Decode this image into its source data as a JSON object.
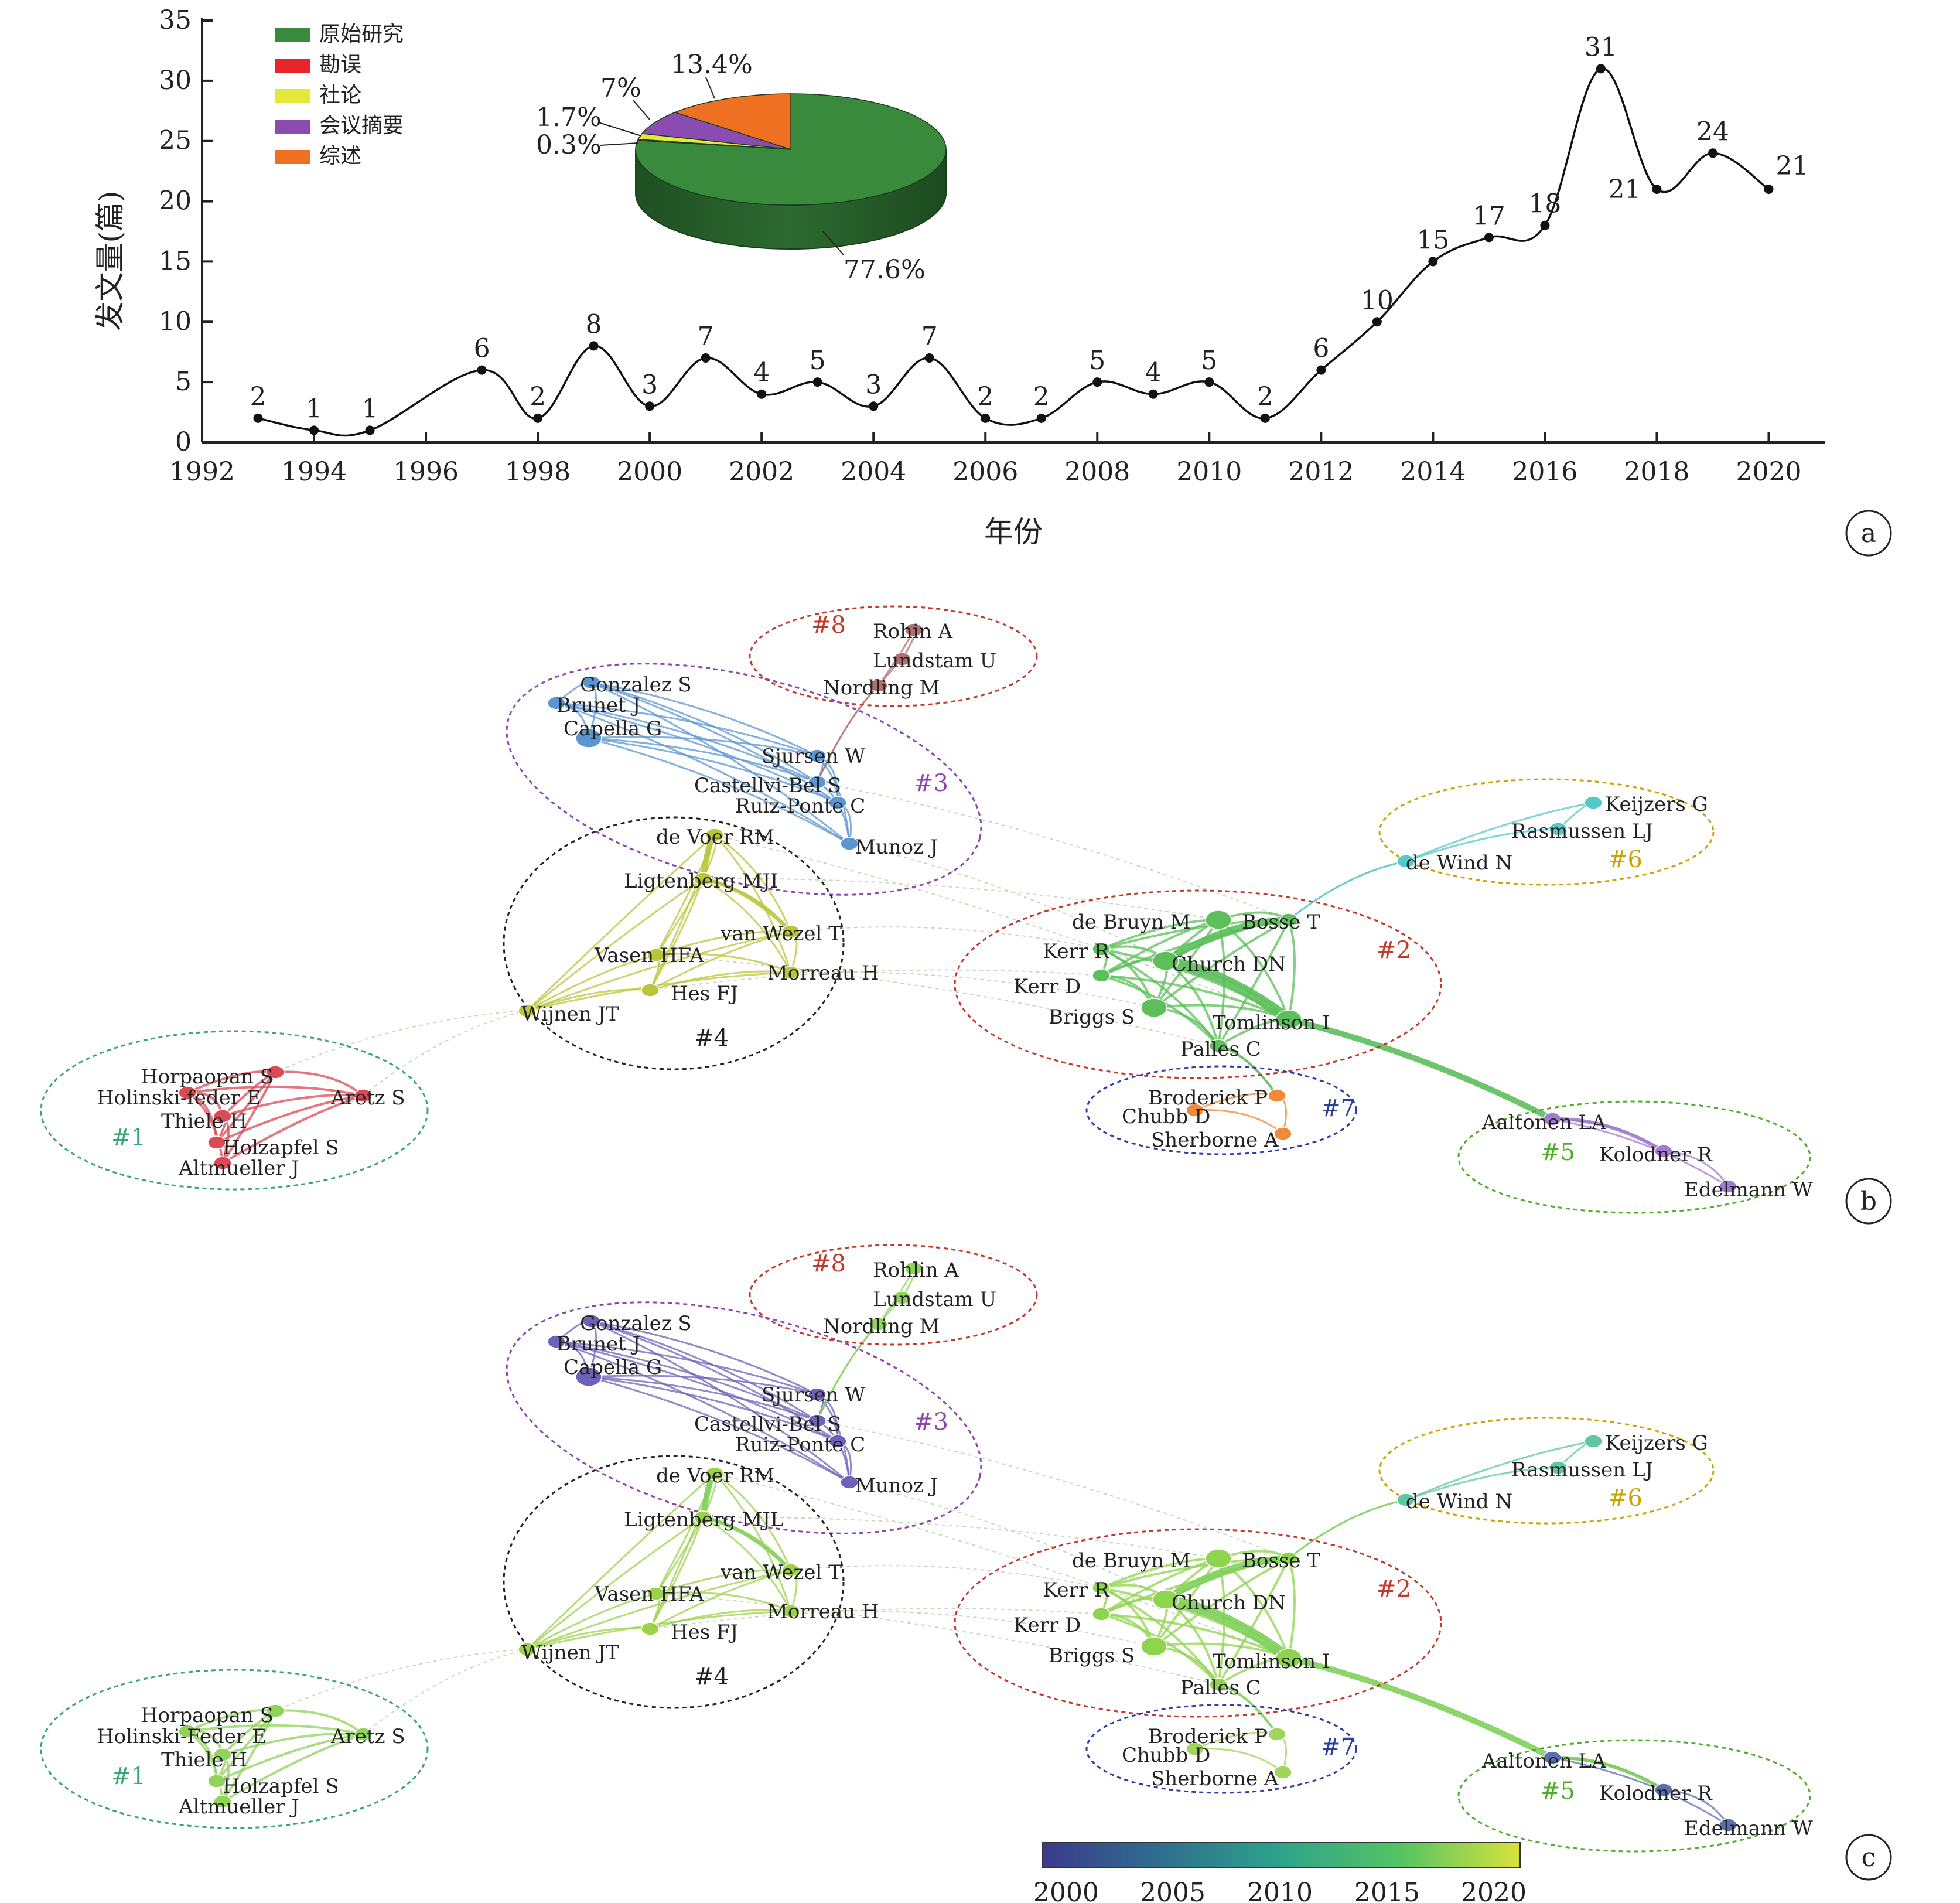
{
  "chart_data": [
    {
      "type": "line",
      "ylabel": "发文量(篇)",
      "xlabel": "年份",
      "x_ticks": [
        "1992",
        "1994",
        "1996",
        "1998",
        "2000",
        "2002",
        "2004",
        "2006",
        "2008",
        "2010",
        "2012",
        "2014",
        "2016",
        "2018",
        "2020"
      ],
      "y_ticks": [
        "0",
        "5",
        "10",
        "15",
        "20",
        "25",
        "30",
        "35"
      ],
      "xlim": [
        1992,
        2021
      ],
      "ylim": [
        0,
        35
      ],
      "x": [
        1993,
        1994,
        1995,
        1997,
        1998,
        1999,
        2000,
        2001,
        2002,
        2003,
        2004,
        2005,
        2006,
        2007,
        2008,
        2009,
        2010,
        2011,
        2012,
        2013,
        2014,
        2015,
        2016,
        2017,
        2018,
        2019,
        2020
      ],
      "values": [
        2,
        1,
        1,
        6,
        2,
        8,
        3,
        7,
        4,
        5,
        3,
        7,
        2,
        2,
        5,
        4,
        5,
        2,
        6,
        10,
        15,
        17,
        18,
        31,
        21,
        24,
        21
      ],
      "line_color": "#111111",
      "panel_label": "a"
    },
    {
      "type": "pie",
      "categories": [
        "原始研究",
        "勘误",
        "社论",
        "会议摘要",
        "综述"
      ],
      "values": [
        77.6,
        0.3,
        1.7,
        7,
        13.4
      ],
      "value_labels": [
        "77.6%",
        "0.3%",
        "1.7%",
        "7%",
        "13.4%"
      ],
      "colors": [
        "#3a8a3e",
        "#e8262a",
        "#e4e83a",
        "#8a4cb0",
        "#f07022"
      ],
      "legend_position": "top-left"
    }
  ],
  "network_b": {
    "panel_label": "b",
    "clusters": [
      {
        "id": "#1",
        "color": "#3aa37a",
        "label_color": "#3aa37a"
      },
      {
        "id": "#2",
        "color": "#c0392b",
        "label_color": "#c0392b"
      },
      {
        "id": "#3",
        "color": "#8e44ad",
        "label_color": "#8e44ad"
      },
      {
        "id": "#4",
        "color": "#222222",
        "label_color": "#222222"
      },
      {
        "id": "#5",
        "color": "#4caf2a",
        "label_color": "#4caf2a"
      },
      {
        "id": "#6",
        "color": "#c9a400",
        "label_color": "#c9a400"
      },
      {
        "id": "#7",
        "color": "#2a3f9e",
        "label_color": "#2a3f9e"
      },
      {
        "id": "#8",
        "color": "#c0392b",
        "label_color": "#c0392b"
      }
    ],
    "node_labels": {
      "rohin": "Rohin A",
      "lundstam": "Lundstam U",
      "nordling": "Nordling M",
      "gonzalez": "Gonzalez S",
      "brunet": "Brunet J",
      "capella": "Capella G",
      "sjursen": "Sjursen W",
      "castellvi": "Castellvi-Bel S",
      "ruizponte": "Ruiz-Ponte C",
      "munoz": "Munoz J",
      "devoer": "de Voer RM",
      "ligtenberg": "Ligtenberg MJI",
      "vanwezel": "van Wezel T",
      "vasen": "Vasen HFA",
      "morreau": "Morreau H",
      "hes": "Hes FJ",
      "wijnen": "Wijnen JT",
      "keijzers": "Keijzers G",
      "rasmussen": "Rasmussen LJ",
      "dewind": "de Wind N",
      "debruyn": "de Bruyn M",
      "bosse": "Bosse T",
      "kerrr": "Kerr R",
      "church": "Church DN",
      "kerrd": "Kerr D",
      "briggs": "Briggs S",
      "tomlinson": "Tomlinson I",
      "palles": "Palles C",
      "broderick": "Broderick P",
      "chubb": "Chubb D",
      "sherborne": "Sherborne A",
      "aaltonen": "Aaltonen LA",
      "kolodner": "Kolodner R",
      "edelmann": "Edelmann W",
      "horpaopan": "Horpaopan S",
      "holinski": "Holinski-feder E",
      "thiele": "Thiele H",
      "aretz": "Aretz S",
      "holzapfel": "Holzapfel S",
      "altmueller": "Altmueller J"
    }
  },
  "network_c": {
    "panel_label": "c",
    "node_labels": {
      "rohin": "Rohlin A",
      "lundstam": "Lundstam U",
      "nordling": "Nordling M",
      "gonzalez": "Gonzalez S",
      "brunet": "Brunet J",
      "capella": "Capella G",
      "sjursen": "Sjursen W",
      "castellvi": "Castellvi-Bel S",
      "ruizponte": "Ruiz-Ponte C",
      "munoz": "Munoz J",
      "devoer": "de Voer RM",
      "ligtenberg": "Ligtenberg MJL",
      "vanwezel": "van Wezel T",
      "vasen": "Vasen HFA",
      "morreau": "Morreau H",
      "hes": "Hes FJ",
      "wijnen": "Wijnen JT",
      "keijzers": "Keijzers G",
      "rasmussen": "Rasmussen LJ",
      "dewind": "de Wind N",
      "debruyn": "de Bruyn M",
      "bosse": "Bosse T",
      "kerrr": "Kerr R",
      "church": "Church DN",
      "kerrd": "Kerr D",
      "briggs": "Briggs S",
      "tomlinson": "Tomlinson I",
      "palles": "Palles C",
      "broderick": "Broderick P",
      "chubb": "Chubb D",
      "sherborne": "Sherborne A",
      "aaltonen": "Aaltonen LA",
      "kolodner": "Kolodner R",
      "edelmann": "Edelmann W",
      "horpaopan": "Horpaopan S",
      "holinski": "Holinski-Feder E",
      "thiele": "Thiele H",
      "aretz": "Aretz S",
      "holzapfel": "Holzapfel S",
      "altmueller": "Altmueller J"
    },
    "colorbar": {
      "ticks": [
        "2000",
        "2005",
        "2010",
        "2015",
        "2020"
      ],
      "colors": [
        "#3b3a8c",
        "#2f6f8e",
        "#2ea38a",
        "#55c463",
        "#d9e23a"
      ]
    }
  }
}
